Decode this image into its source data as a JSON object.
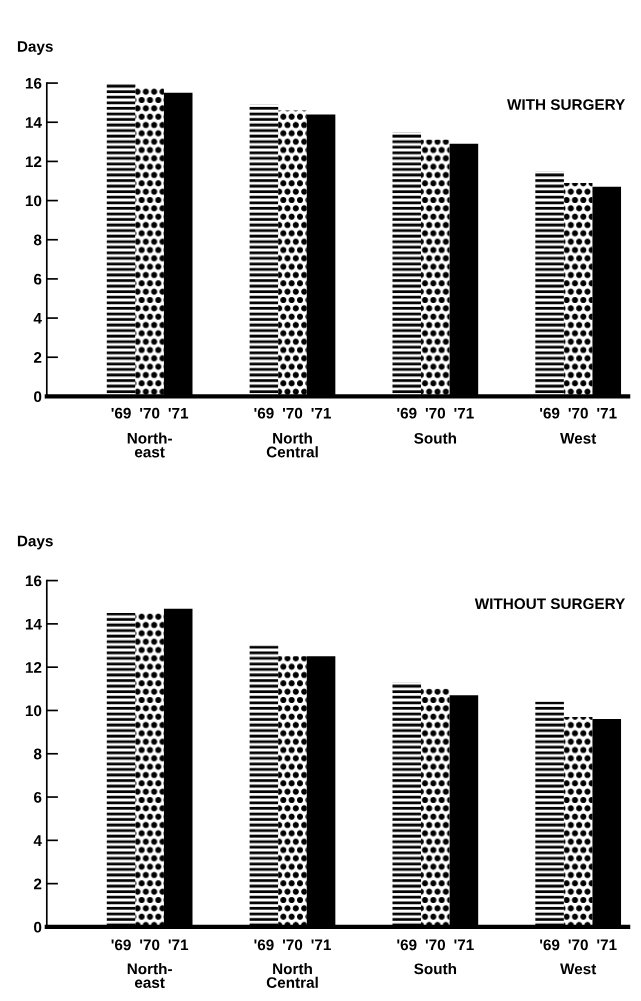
{
  "chart_data": [
    {
      "type": "bar",
      "title": "WITH SURGERY",
      "ylabel": "Days",
      "categories": [
        "North-\neast",
        "North\nCentral",
        "South",
        "West"
      ],
      "ylim": [
        0,
        16
      ],
      "yticks": [
        0,
        2,
        4,
        6,
        8,
        10,
        12,
        14,
        16
      ],
      "grid": false,
      "legend": false,
      "series": [
        {
          "name": "'69",
          "color": "#000000",
          "values": [
            16.0,
            14.9,
            13.5,
            11.5
          ]
        },
        {
          "name": "'70",
          "color": "#000000",
          "values": [
            15.8,
            14.6,
            13.1,
            10.9
          ]
        },
        {
          "name": "'71",
          "color": "#000000",
          "values": [
            15.5,
            14.4,
            12.9,
            10.7
          ]
        }
      ]
    },
    {
      "type": "bar",
      "title": "WITHOUT SURGERY",
      "ylabel": "Days",
      "categories": [
        "North-\neast",
        "North\nCentral",
        "South",
        "West"
      ],
      "ylim": [
        0,
        16
      ],
      "yticks": [
        0,
        2,
        4,
        6,
        8,
        10,
        12,
        14,
        16
      ],
      "grid": false,
      "legend": false,
      "series": [
        {
          "name": "'69",
          "color": "#000000",
          "values": [
            14.5,
            13.0,
            11.3,
            10.4
          ]
        },
        {
          "name": "'70",
          "color": "#000000",
          "values": [
            14.5,
            12.5,
            11.0,
            9.7
          ]
        },
        {
          "name": "'71",
          "color": "#000000",
          "values": [
            14.7,
            12.5,
            10.7,
            9.6
          ]
        }
      ]
    }
  ]
}
